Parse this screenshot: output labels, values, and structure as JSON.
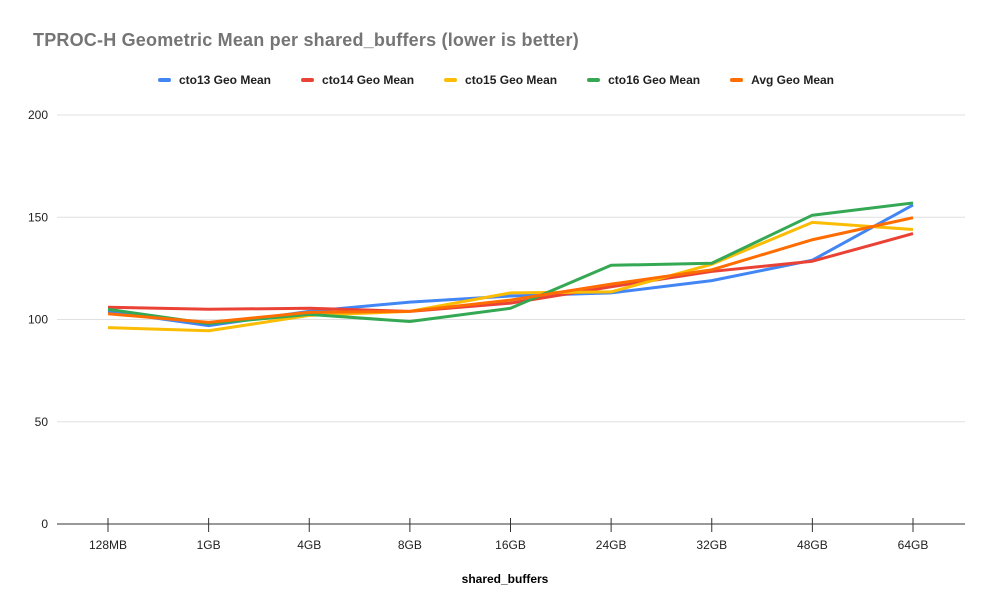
{
  "chart_data": {
    "type": "line",
    "title": "TPROC-H Geometric Mean per shared_buffers (lower is better)",
    "xlabel": "shared_buffers",
    "ylabel": "",
    "categories": [
      "128MB",
      "1GB",
      "4GB",
      "8GB",
      "16GB",
      "24GB",
      "32GB",
      "48GB",
      "64GB"
    ],
    "series": [
      {
        "name": "cto13 Geo Mean",
        "color": "#4285F4",
        "values": [
          104,
          97,
          104,
          108.5,
          111.5,
          113,
          119,
          129,
          156
        ]
      },
      {
        "name": "cto14 Geo Mean",
        "color": "#EA4335",
        "values": [
          106,
          105,
          105.5,
          104,
          108,
          116,
          123.5,
          128.5,
          142
        ]
      },
      {
        "name": "cto15 Geo Mean",
        "color": "#FBBC04",
        "values": [
          96,
          94.5,
          102,
          104,
          113,
          113.5,
          127,
          147.5,
          144
        ]
      },
      {
        "name": "cto16 Geo Mean",
        "color": "#34A853",
        "values": [
          105,
          98,
          102.5,
          99,
          105.5,
          126.5,
          127.5,
          151,
          157
        ]
      },
      {
        "name": "Avg Geo Mean",
        "color": "#FF6D00",
        "values": [
          102.8,
          98.6,
          103.5,
          104,
          109.5,
          117.3,
          124.3,
          139,
          149.8
        ]
      }
    ],
    "ylim": [
      0,
      200
    ],
    "yticks": [
      0,
      50,
      100,
      150,
      200
    ],
    "grid": true,
    "legend_position": "top"
  },
  "colors": {
    "title": "#757575",
    "axis_text": "#222222",
    "gridline": "#e0e0e0",
    "baseline": "#333333"
  }
}
